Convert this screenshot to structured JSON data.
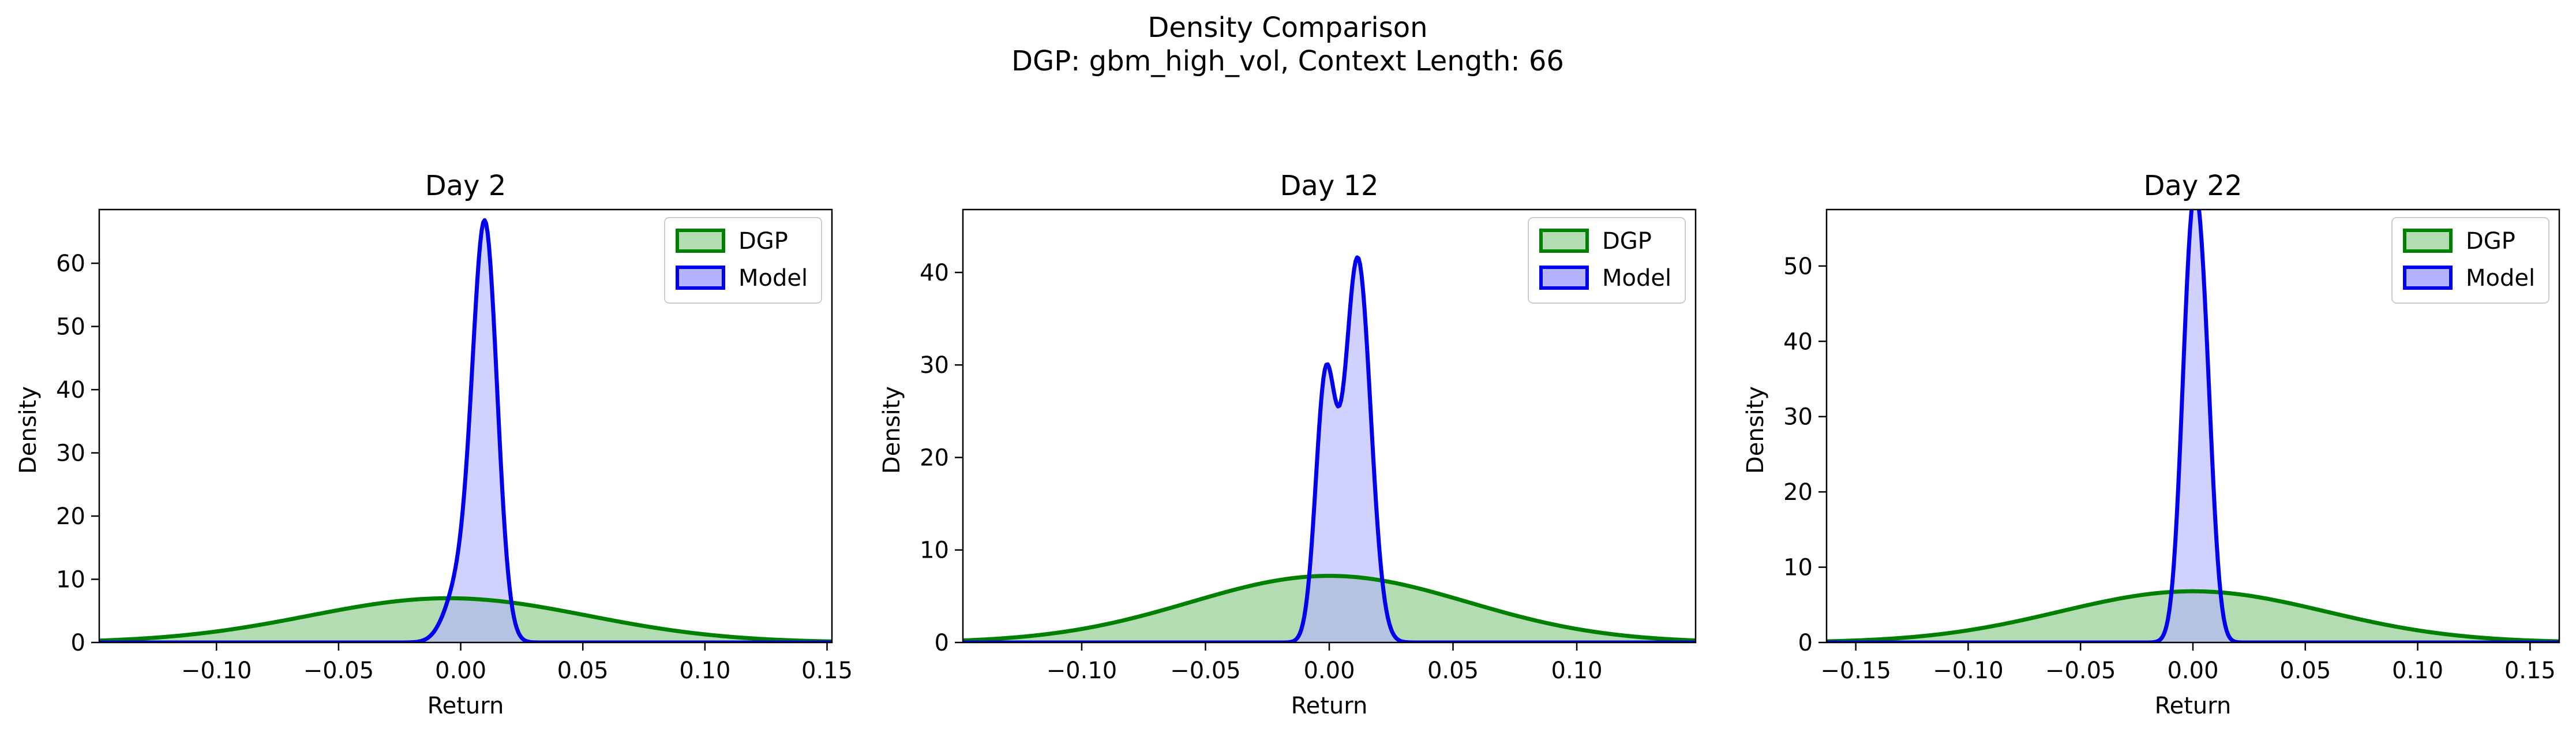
{
  "figure": {
    "title_line1": "Density Comparison",
    "title_line2": "DGP: gbm_high_vol, Context Length: 66"
  },
  "colors": {
    "dgp_line": "#008000",
    "dgp_fill": "#b3dcb3",
    "model_line": "#0000ee",
    "model_fill": "#b3b3ff",
    "overlap_fill": "#7f99cc"
  },
  "chart_data": [
    {
      "type": "area",
      "title": "Day 2",
      "xlabel": "Return",
      "ylabel": "Density",
      "xlim": [
        -0.148,
        0.152
      ],
      "ylim": [
        0,
        68.5
      ],
      "xticks": [
        -0.1,
        -0.05,
        0.0,
        0.05,
        0.1,
        0.15
      ],
      "xtick_labels": [
        "−0.10",
        "−0.05",
        "0.00",
        "0.05",
        "0.10",
        "0.15"
      ],
      "yticks": [
        0,
        10,
        20,
        30,
        40,
        50,
        60
      ],
      "ytick_labels": [
        "0",
        "10",
        "20",
        "30",
        "40",
        "50",
        "60"
      ],
      "legend": "top-right",
      "grid": false,
      "series": [
        {
          "name": "DGP",
          "kind": "gaussian",
          "mean": -0.005,
          "sd": 0.057,
          "peak": 7.0
        },
        {
          "name": "Model",
          "kind": "mixture",
          "components": [
            {
              "mean": 0.01,
              "sd": 0.005,
              "peak": 64.5
            },
            {
              "mean": 0.0,
              "sd": 0.006,
              "peak": 9.0
            }
          ]
        }
      ]
    },
    {
      "type": "area",
      "title": "Day 12",
      "xlabel": "Return",
      "ylabel": "Density",
      "xlim": [
        -0.148,
        0.148
      ],
      "ylim": [
        0,
        46.8
      ],
      "xticks": [
        -0.1,
        -0.05,
        0.0,
        0.05,
        0.1
      ],
      "xtick_labels": [
        "−0.10",
        "−0.05",
        "0.00",
        "0.05",
        "0.10"
      ],
      "yticks": [
        0,
        10,
        20,
        30,
        40
      ],
      "ytick_labels": [
        "0",
        "10",
        "20",
        "30",
        "40"
      ],
      "legend": "top-right",
      "grid": false,
      "series": [
        {
          "name": "DGP",
          "kind": "gaussian",
          "mean": 0.0,
          "sd": 0.056,
          "peak": 7.2
        },
        {
          "name": "Model",
          "kind": "mixture",
          "components": [
            {
              "mean": 0.0115,
              "sd": 0.0052,
              "peak": 41.5
            },
            {
              "mean": -0.0015,
              "sd": 0.004,
              "peak": 28.0
            }
          ]
        }
      ]
    },
    {
      "type": "area",
      "title": "Day 22",
      "xlabel": "Return",
      "ylabel": "Density",
      "xlim": [
        -0.163,
        0.163
      ],
      "ylim": [
        0,
        57.5
      ],
      "xticks": [
        -0.15,
        -0.1,
        -0.05,
        0.0,
        0.05,
        0.1,
        0.15
      ],
      "xtick_labels": [
        "−0.15",
        "−0.10",
        "−0.05",
        "0.00",
        "0.05",
        "0.10",
        "0.15"
      ],
      "yticks": [
        0,
        10,
        20,
        30,
        40,
        50
      ],
      "ytick_labels": [
        "0",
        "10",
        "20",
        "30",
        "40",
        "50"
      ],
      "legend": "top-right",
      "grid": false,
      "series": [
        {
          "name": "DGP",
          "kind": "gaussian",
          "mean": 0.0,
          "sd": 0.059,
          "peak": 6.8
        },
        {
          "name": "Model",
          "kind": "mixture",
          "components": [
            {
              "mean": -0.0005,
              "sd": 0.0045,
              "peak": 50.0
            },
            {
              "mean": 0.0055,
              "sd": 0.004,
              "peak": 24.0
            }
          ]
        }
      ]
    }
  ]
}
